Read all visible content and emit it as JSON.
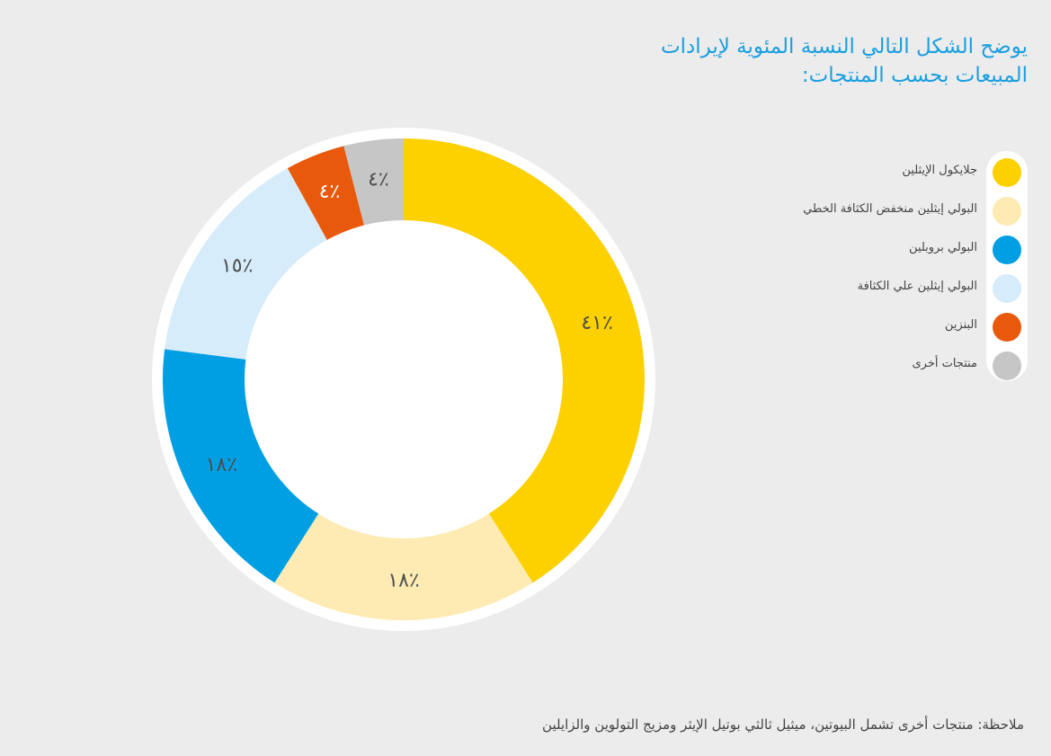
{
  "title": "يوضح الشكل التالي النسبة المئوية لإيرادات المبيعات بحسب المنتجات:",
  "footnote": "ملاحظة: منتجات أخرى تشمل البيوتين، ميثيل ثالثي بوتيل الإيثر ومزيج التولوين والزايلين",
  "chart_data": {
    "type": "pie",
    "variant": "donut",
    "title": "يوضح الشكل التالي النسبة المئوية لإيرادات المبيعات بحسب المنتجات:",
    "categories": [
      "جلايكول الإيثلين",
      "البولي إيثلين منخفض الكثافة الخطي",
      "البولي بروبلين",
      "البولي إيثلين علي الكثافة",
      "البنزين",
      "منتجات أخرى"
    ],
    "values": [
      41,
      18,
      18,
      15,
      4,
      4
    ],
    "labels": [
      "٤١٪",
      "١٨٪",
      "١٨٪",
      "١٥٪",
      "٤٪",
      "٤٪"
    ],
    "colors": [
      "#fdd000",
      "#fdebb3",
      "#009fe3",
      "#d6ecfa",
      "#e8590c",
      "#c6c6c6"
    ],
    "label_colors": [
      "#4d4d4d",
      "#4d4d4d",
      "#4d4d4d",
      "#4d4d4d",
      "#ffffff",
      "#4d4d4d"
    ],
    "legend_position": "right"
  }
}
